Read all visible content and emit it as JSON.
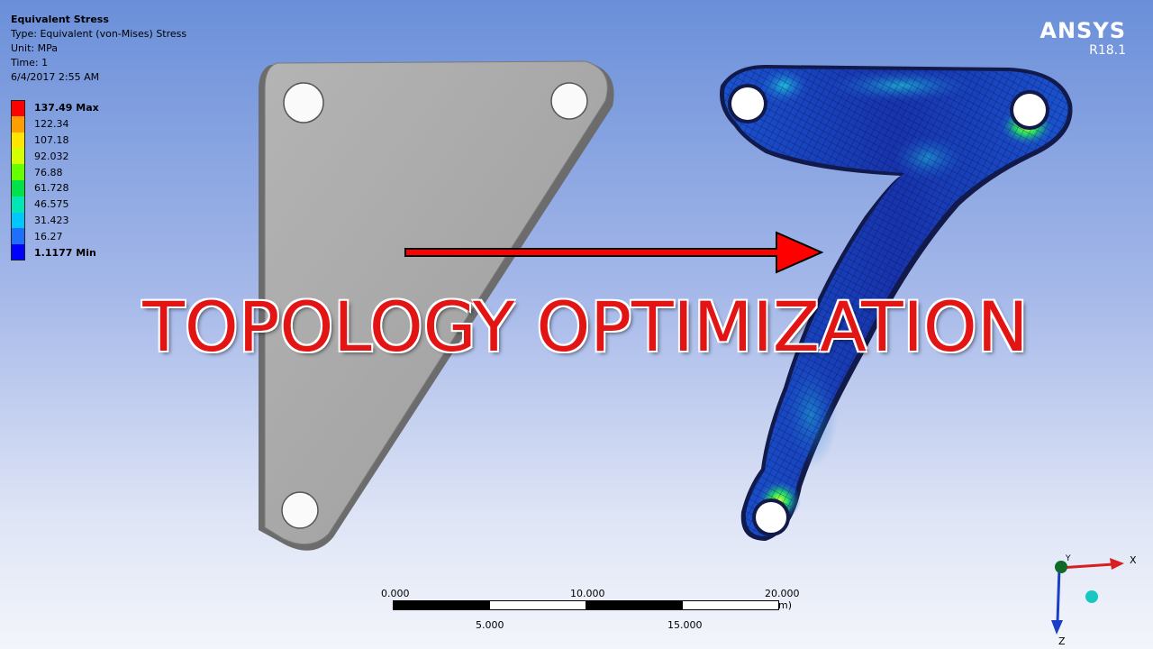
{
  "result_info": {
    "title": "Equivalent Stress",
    "type": "Type: Equivalent (von-Mises) Stress",
    "unit": "Unit: MPa",
    "time": "Time: 1",
    "date": "6/4/2017 2:55 AM"
  },
  "legend": {
    "items": [
      {
        "label": "137.49 Max",
        "color": "#ff0000",
        "bold": true
      },
      {
        "label": "122.34",
        "color": "#ff9e00",
        "bold": false
      },
      {
        "label": "107.18",
        "color": "#ffe600",
        "bold": false
      },
      {
        "label": "92.032",
        "color": "#d4ff00",
        "bold": false
      },
      {
        "label": "76.88",
        "color": "#65ff00",
        "bold": false
      },
      {
        "label": "61.728",
        "color": "#00e14a",
        "bold": false
      },
      {
        "label": "46.575",
        "color": "#00e6b4",
        "bold": false
      },
      {
        "label": "31.423",
        "color": "#00c8ff",
        "bold": false
      },
      {
        "label": "16.27",
        "color": "#1f6fff",
        "bold": false
      },
      {
        "label": "1.1177 Min",
        "color": "#0000ff",
        "bold": true
      }
    ]
  },
  "brand": {
    "name": "ANSYS",
    "version": "R18.1"
  },
  "headline": "TOPOLOGY OPTIMIZATION",
  "scale_bar": {
    "top_labels": [
      "0.000",
      "10.000",
      "20.000 (mm)"
    ],
    "bottom_labels": [
      "5.000",
      "15.000"
    ]
  },
  "triad": {
    "x": "X",
    "y": "Y",
    "z": "Z"
  },
  "colors": {
    "arrow": "#ff0000",
    "plate": "#a7a7a7",
    "mesh_base": "#1530b5"
  }
}
